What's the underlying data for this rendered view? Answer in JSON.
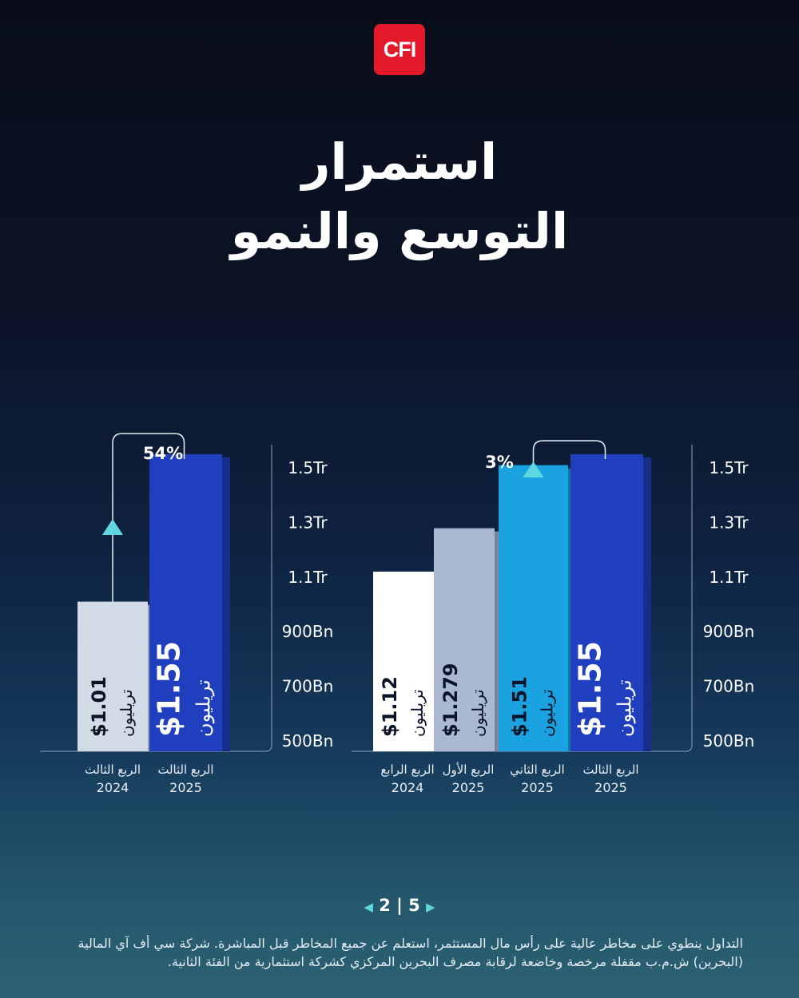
{
  "logo": {
    "text": "CFI",
    "color": "#e3192b"
  },
  "title": {
    "line1": "استمرار",
    "line2": "التوسع والنمو"
  },
  "unit_label": "تريليون",
  "chart_data": [
    {
      "type": "bar",
      "yaxis_ticks": [
        "500Bn",
        "700Bn",
        "900Bn",
        "1.1Tr",
        "1.3Tr",
        "1.5Tr"
      ],
      "ylim": [
        500,
        1550
      ],
      "y_unit": "Bn",
      "categories": [
        {
          "quarter": "الربع الثالث",
          "year": "2024"
        },
        {
          "quarter": "الربع الثالث",
          "year": "2025"
        }
      ],
      "values": [
        1010,
        1550
      ],
      "labels": [
        "$1.01",
        "$1.55"
      ],
      "colors": [
        "#d3dce6",
        "#1f3fbf"
      ],
      "label_colors": [
        "#0b1326",
        "#ffffff"
      ],
      "annotation": {
        "text": "54%",
        "from": 0,
        "to": 1
      }
    },
    {
      "type": "bar",
      "yaxis_ticks": [
        "500Bn",
        "700Bn",
        "900Bn",
        "1.1Tr",
        "1.3Tr",
        "1.5Tr"
      ],
      "ylim": [
        500,
        1550
      ],
      "y_unit": "Bn",
      "categories": [
        {
          "quarter": "الربع الرابع",
          "year": "2024"
        },
        {
          "quarter": "الربع الأول",
          "year": "2025"
        },
        {
          "quarter": "الربع الثاني",
          "year": "2025"
        },
        {
          "quarter": "الربع الثالث",
          "year": "2025"
        }
      ],
      "values": [
        1120,
        1279,
        1510,
        1550
      ],
      "labels": [
        "$1.12",
        "$1.279",
        "$1.51",
        "$1.55"
      ],
      "colors": [
        "#ffffff",
        "#aab8d4",
        "#1aa3e0",
        "#1f3fbf"
      ],
      "label_colors": [
        "#0b1326",
        "#0b1326",
        "#0b1326",
        "#ffffff"
      ],
      "annotation": {
        "text": "3%",
        "from": 2,
        "to": 3
      }
    }
  ],
  "pager": {
    "current": "2",
    "separator": "|",
    "total": "5"
  },
  "disclaimer": "التداول ينطوي على مخاطر عالية على رأس مال المستثمر، استعلم عن جميع المخاطر قبل المباشرة. شركة سي أف آي المالية (البحرين) ش.م.ب مقفلة مرخصة وخاضعة لرقابة مصرف البحرين المركزي كشركة استثمارية من الفئة الثانية."
}
